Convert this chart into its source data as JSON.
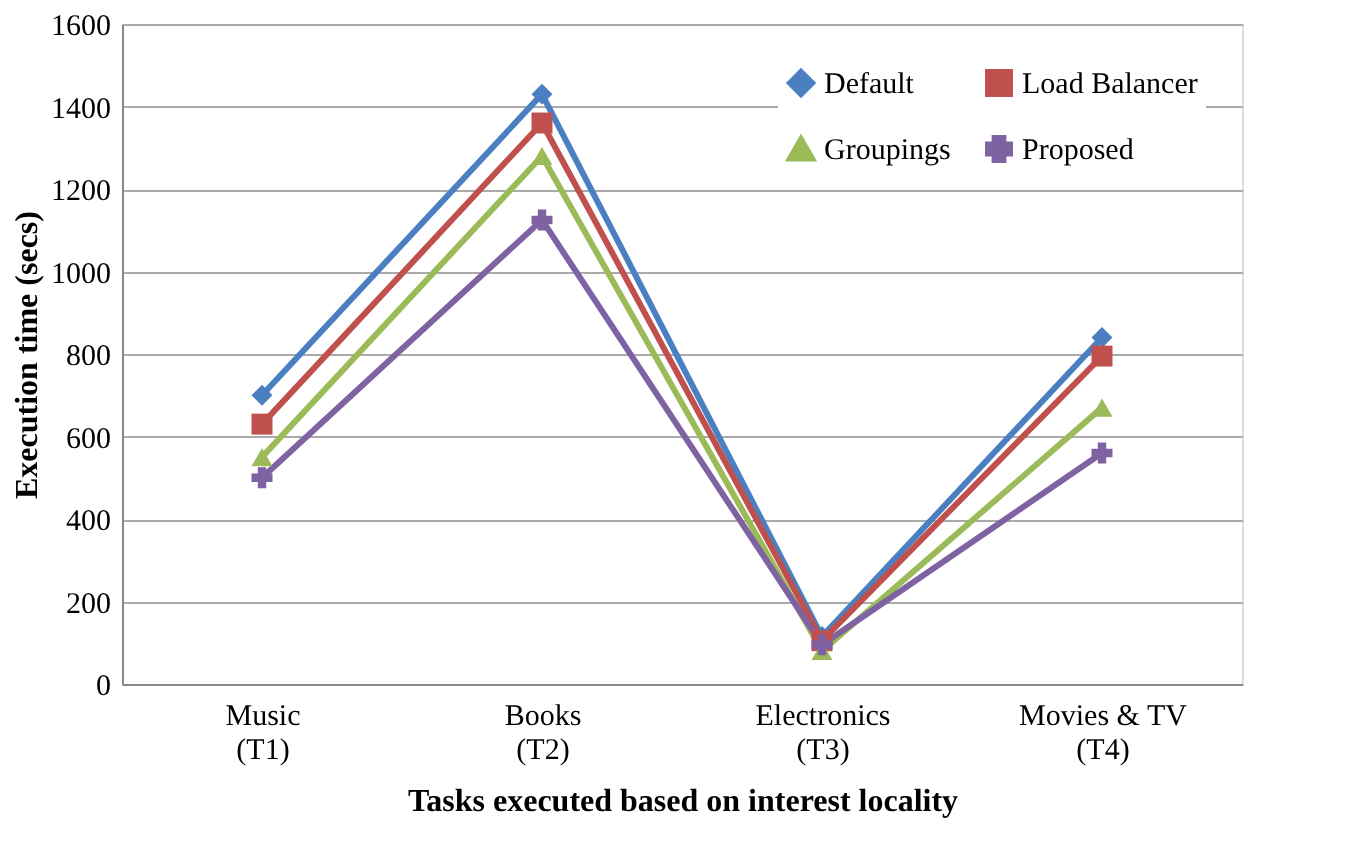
{
  "chart_data": {
    "type": "line",
    "xlabel": "Tasks executed based on interest locality",
    "ylabel": "Execution time (secs)",
    "categories": [
      "Music\n(T1)",
      "Books\n(T2)",
      "Electronics\n(T3)",
      "Movies & TV\n(T4)"
    ],
    "series": [
      {
        "name": "Default",
        "color": "#4a7fc1",
        "marker": "diamond",
        "values": [
          700,
          1430,
          115,
          840
        ]
      },
      {
        "name": "Load Balancer",
        "color": "#c0504d",
        "marker": "square",
        "values": [
          630,
          1360,
          105,
          795
        ]
      },
      {
        "name": "Groupings",
        "color": "#9bbb59",
        "marker": "triangle",
        "values": [
          550,
          1280,
          80,
          670
        ]
      },
      {
        "name": "Proposed",
        "color": "#7e62a1",
        "marker": "cross",
        "values": [
          500,
          1125,
          95,
          560
        ]
      }
    ],
    "ylim": [
      0,
      1600
    ],
    "yticks": [
      0,
      200,
      400,
      600,
      800,
      1000,
      1200,
      1400,
      1600
    ],
    "grid": "y",
    "legend": "top right"
  }
}
